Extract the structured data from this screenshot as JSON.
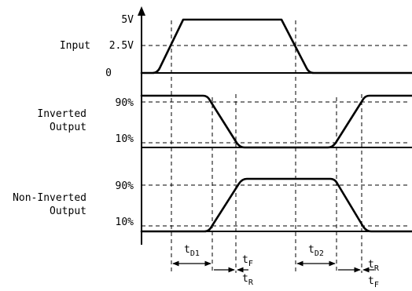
{
  "input": {
    "label": "Input",
    "levels": [
      "5V",
      "2.5V",
      "0"
    ]
  },
  "inverted_output": {
    "label_line1": "Inverted",
    "label_line2": "Output",
    "levels": [
      "90%",
      "10%"
    ]
  },
  "noninverted_output": {
    "label_line1": "Non-Inverted",
    "label_line2": "Output",
    "levels": [
      "90%",
      "10%"
    ]
  },
  "timing": {
    "td1": {
      "main": "t",
      "sub": "D1"
    },
    "td2": {
      "main": "t",
      "sub": "D2"
    },
    "tf_left": {
      "main": "t",
      "sub": "F"
    },
    "tr_left": {
      "main": "t",
      "sub": "R"
    },
    "tr_right": {
      "main": "t",
      "sub": "R"
    },
    "tf_right": {
      "main": "t",
      "sub": "F"
    }
  }
}
